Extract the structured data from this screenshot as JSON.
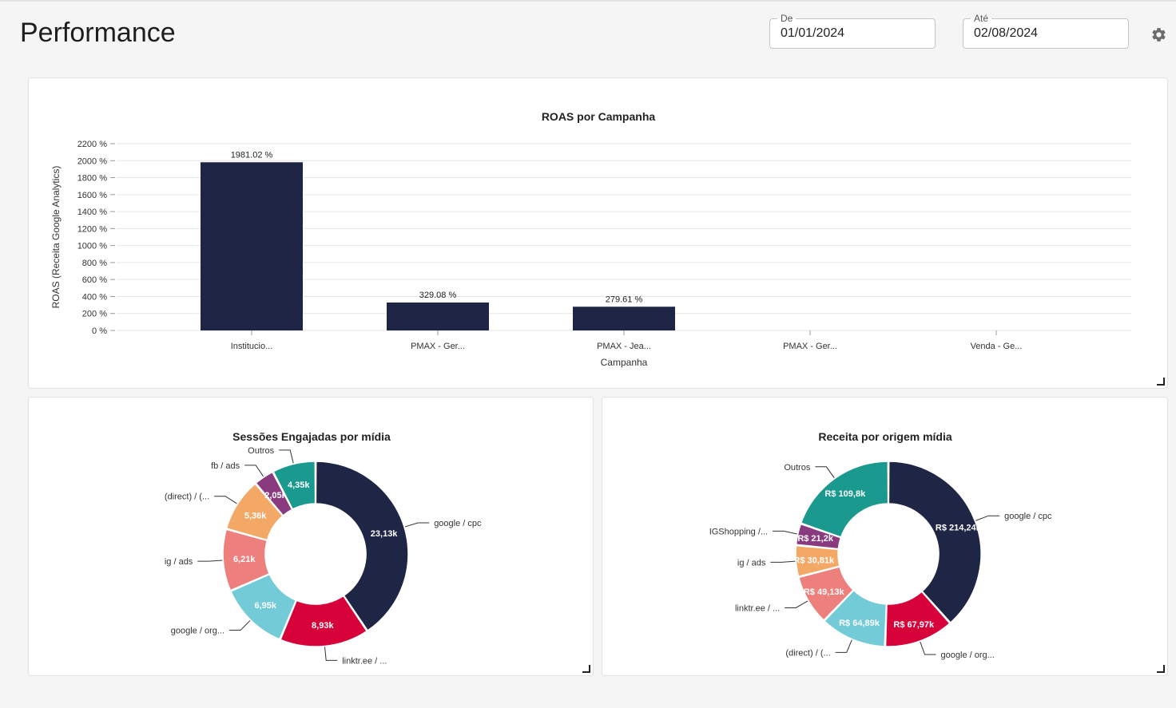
{
  "header": {
    "title": "Performance",
    "date_from": {
      "label": "De",
      "value": "01/01/2024"
    },
    "date_to": {
      "label": "Até",
      "value": "02/08/2024"
    },
    "settings_icon": "gear-icon"
  },
  "colors": {
    "navy": "#1f2544",
    "red": "#d8023b",
    "cyan": "#72cbd6",
    "salmon": "#ed7f7d",
    "orange": "#f4a866",
    "purple": "#8a3a7e",
    "teal": "#1a9a8e"
  },
  "chart_data": [
    {
      "type": "bar",
      "title": "ROAS por Campanha",
      "xlabel": "Campanha",
      "ylabel": "ROAS (Receita Google Analytics)",
      "categories": [
        "Institucio...",
        "PMAX - Ger...",
        "PMAX - Jea...",
        "PMAX - Ger...",
        "Venda - Ge..."
      ],
      "values": [
        1981.02,
        329.08,
        279.61,
        0,
        0
      ],
      "data_labels": [
        "1981.02 %",
        "329.08 %",
        "279.61 %",
        "",
        ""
      ],
      "yticks": [
        0,
        200,
        400,
        600,
        800,
        1000,
        1200,
        1400,
        1600,
        1800,
        2000,
        2200
      ],
      "ytick_labels": [
        "0 %",
        "200 %",
        "400 %",
        "600 %",
        "800 %",
        "1000 %",
        "1200 %",
        "1400 %",
        "1600 %",
        "1800 %",
        "2000 %",
        "2200 %"
      ],
      "ylim": [
        0,
        2200
      ],
      "grid": true
    },
    {
      "type": "pie",
      "title": "Sessões Engajadas por mídia",
      "slices": [
        {
          "label": "google / cpc",
          "value": 23130,
          "value_label": "23,13k",
          "color": "#1f2544"
        },
        {
          "label": "linktr.ee / ...",
          "value": 8930,
          "value_label": "8,93k",
          "color": "#d8023b"
        },
        {
          "label": "google / org...",
          "value": 6950,
          "value_label": "6,95k",
          "color": "#72cbd6"
        },
        {
          "label": "ig / ads",
          "value": 6210,
          "value_label": "6,21k",
          "color": "#ed7f7d"
        },
        {
          "label": "(direct) / (...",
          "value": 5360,
          "value_label": "5,36k",
          "color": "#f4a866"
        },
        {
          "label": "fb / ads",
          "value": 2050,
          "value_label": "2,05k",
          "color": "#8a3a7e"
        },
        {
          "label": "Outros",
          "value": 4350,
          "value_label": "4,35k",
          "color": "#1a9a8e"
        }
      ]
    },
    {
      "type": "pie",
      "title": "Receita por origem mídia",
      "slices": [
        {
          "label": "google / cpc",
          "value": 214240,
          "value_label": "R$ 214,24k",
          "color": "#1f2544"
        },
        {
          "label": "google / org...",
          "value": 67970,
          "value_label": "R$ 67,97k",
          "color": "#d8023b"
        },
        {
          "label": "(direct) / (...",
          "value": 64890,
          "value_label": "R$ 64,89k",
          "color": "#72cbd6"
        },
        {
          "label": "linktr.ee / ...",
          "value": 49130,
          "value_label": "R$ 49,13k",
          "color": "#ed7f7d"
        },
        {
          "label": "ig / ads",
          "value": 30810,
          "value_label": "R$ 30,81k",
          "color": "#f4a866"
        },
        {
          "label": "IGShopping /...",
          "value": 21200,
          "value_label": "R$ 21,2k",
          "color": "#8a3a7e"
        },
        {
          "label": "Outros",
          "value": 109800,
          "value_label": "R$ 109,8k",
          "color": "#1a9a8e"
        }
      ]
    }
  ]
}
